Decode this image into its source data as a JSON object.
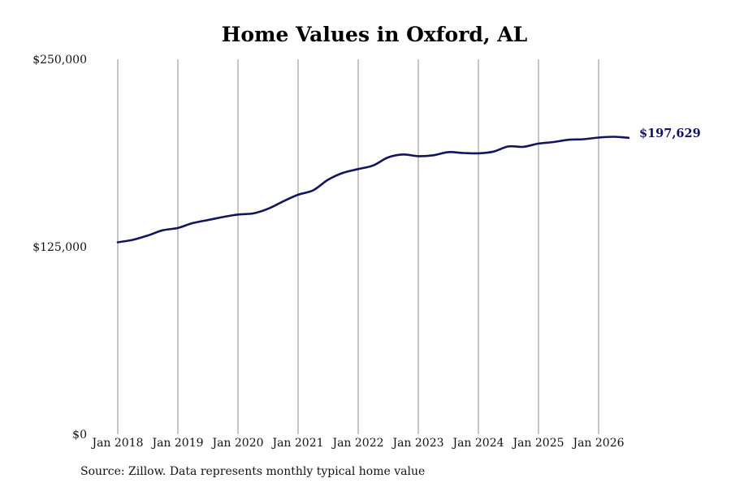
{
  "chart_data": {
    "type": "line",
    "title": "Home Values in Oxford, AL",
    "source_note": "Source: Zillow. Data represents monthly typical home value",
    "ylim": [
      0,
      250000
    ],
    "y_ticks": [
      {
        "value": 0,
        "label": "$0"
      },
      {
        "value": 125000,
        "label": "$125,000"
      },
      {
        "value": 250000,
        "label": "$250,000"
      }
    ],
    "x_ticks": [
      {
        "value": "2018-01",
        "label": "Jan 2018"
      },
      {
        "value": "2019-01",
        "label": "Jan 2019"
      },
      {
        "value": "2020-01",
        "label": "Jan 2020"
      },
      {
        "value": "2021-01",
        "label": "Jan 2021"
      },
      {
        "value": "2022-01",
        "label": "Jan 2022"
      },
      {
        "value": "2023-01",
        "label": "Jan 2023"
      },
      {
        "value": "2024-01",
        "label": "Jan 2024"
      },
      {
        "value": "2025-01",
        "label": "Jan 2025"
      },
      {
        "value": "2026-01",
        "label": "Jan 2026"
      }
    ],
    "grid": "vertical",
    "line_color": "#13145e",
    "gridline_color": "#8c8c8c",
    "end_label": "$197,629",
    "series": [
      {
        "points": [
          {
            "x": "2018-01",
            "y": 128000
          },
          {
            "x": "2018-04",
            "y": 129600
          },
          {
            "x": "2018-07",
            "y": 132500
          },
          {
            "x": "2018-10",
            "y": 136000
          },
          {
            "x": "2019-01",
            "y": 137500
          },
          {
            "x": "2019-04",
            "y": 140800
          },
          {
            "x": "2019-07",
            "y": 142800
          },
          {
            "x": "2019-10",
            "y": 144800
          },
          {
            "x": "2020-01",
            "y": 146500
          },
          {
            "x": "2020-04",
            "y": 147200
          },
          {
            "x": "2020-07",
            "y": 150300
          },
          {
            "x": "2020-10",
            "y": 155200
          },
          {
            "x": "2021-01",
            "y": 159700
          },
          {
            "x": "2021-04",
            "y": 162600
          },
          {
            "x": "2021-07",
            "y": 169700
          },
          {
            "x": "2021-10",
            "y": 174300
          },
          {
            "x": "2022-01",
            "y": 176800
          },
          {
            "x": "2022-04",
            "y": 179200
          },
          {
            "x": "2022-07",
            "y": 184600
          },
          {
            "x": "2022-10",
            "y": 186500
          },
          {
            "x": "2023-01",
            "y": 185400
          },
          {
            "x": "2023-04",
            "y": 186000
          },
          {
            "x": "2023-07",
            "y": 188100
          },
          {
            "x": "2023-10",
            "y": 187500
          },
          {
            "x": "2024-01",
            "y": 187300
          },
          {
            "x": "2024-04",
            "y": 188400
          },
          {
            "x": "2024-07",
            "y": 191900
          },
          {
            "x": "2024-10",
            "y": 191600
          },
          {
            "x": "2025-01",
            "y": 193800
          },
          {
            "x": "2025-04",
            "y": 194800
          },
          {
            "x": "2025-07",
            "y": 196300
          },
          {
            "x": "2025-10",
            "y": 196700
          },
          {
            "x": "2026-01",
            "y": 197800
          },
          {
            "x": "2026-04",
            "y": 198300
          },
          {
            "x": "2026-07",
            "y": 197629
          }
        ]
      }
    ]
  }
}
